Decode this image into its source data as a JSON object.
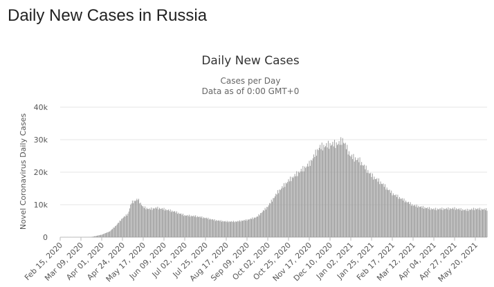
{
  "page": {
    "title": "Daily New Cases in Russia"
  },
  "chart_data": {
    "type": "bar",
    "title": "Daily New Cases",
    "subtitle": "Cases per Day",
    "subtitle2": "Data as of 0:00 GMT+0",
    "ylabel": "Novel Coronavirus Daily Cases",
    "xlabel": "",
    "ylim": [
      0,
      40000
    ],
    "yticks": [
      0,
      10000,
      20000,
      30000,
      40000
    ],
    "ytick_labels": [
      "0",
      "10k",
      "20k",
      "30k",
      "40k"
    ],
    "grid": true,
    "bar_color": "#999999",
    "x_start": "2020-02-15",
    "x_end": "2021-06-02",
    "xtick_labels": [
      "Feb 15, 2020",
      "Mar 09, 2020",
      "Apr 01, 2020",
      "Apr 24, 2020",
      "May 17, 2020",
      "Jun 09, 2020",
      "Jul 02, 2020",
      "Jul 25, 2020",
      "Aug 17, 2020",
      "Sep 09, 2020",
      "Oct 02, 2020",
      "Oct 25, 2020",
      "Nov 17, 2020",
      "Dec 10, 2020",
      "Jan 02, 2021",
      "Jan 25, 2021",
      "Feb 17, 2021",
      "Mar 12, 2021",
      "Apr 04, 2021",
      "Apr 27, 2021",
      "May 20, 2021"
    ],
    "series": [
      {
        "points": [
          [
            "2020-02-15",
            0
          ],
          [
            "2020-03-09",
            5
          ],
          [
            "2020-03-20",
            50
          ],
          [
            "2020-04-01",
            770
          ],
          [
            "2020-04-10",
            1790
          ],
          [
            "2020-04-17",
            3600
          ],
          [
            "2020-04-24",
            5850
          ],
          [
            "2020-04-30",
            7100
          ],
          [
            "2020-05-04",
            10600
          ],
          [
            "2020-05-11",
            11650
          ],
          [
            "2020-05-17",
            9200
          ],
          [
            "2020-05-24",
            8600
          ],
          [
            "2020-06-01",
            9000
          ],
          [
            "2020-06-09",
            8600
          ],
          [
            "2020-06-20",
            7900
          ],
          [
            "2020-07-02",
            6700
          ],
          [
            "2020-07-15",
            6400
          ],
          [
            "2020-07-25",
            5900
          ],
          [
            "2020-08-05",
            5200
          ],
          [
            "2020-08-17",
            4800
          ],
          [
            "2020-08-28",
            4800
          ],
          [
            "2020-09-09",
            5300
          ],
          [
            "2020-09-20",
            6200
          ],
          [
            "2020-10-02",
            9400
          ],
          [
            "2020-10-13",
            13800
          ],
          [
            "2020-10-25",
            17300
          ],
          [
            "2020-11-05",
            19800
          ],
          [
            "2020-11-17",
            22400
          ],
          [
            "2020-11-28",
            27500
          ],
          [
            "2020-12-10",
            28400
          ],
          [
            "2020-12-20",
            28700
          ],
          [
            "2020-12-24",
            29900
          ],
          [
            "2021-01-02",
            24800
          ],
          [
            "2021-01-12",
            23400
          ],
          [
            "2021-01-25",
            18900
          ],
          [
            "2021-02-05",
            16600
          ],
          [
            "2021-02-17",
            13400
          ],
          [
            "2021-03-01",
            11500
          ],
          [
            "2021-03-12",
            9800
          ],
          [
            "2021-03-24",
            9100
          ],
          [
            "2021-04-04",
            8600
          ],
          [
            "2021-04-15",
            8700
          ],
          [
            "2021-04-27",
            8800
          ],
          [
            "2021-05-10",
            8300
          ],
          [
            "2021-05-20",
            8700
          ],
          [
            "2021-06-02",
            8500
          ]
        ]
      }
    ]
  }
}
